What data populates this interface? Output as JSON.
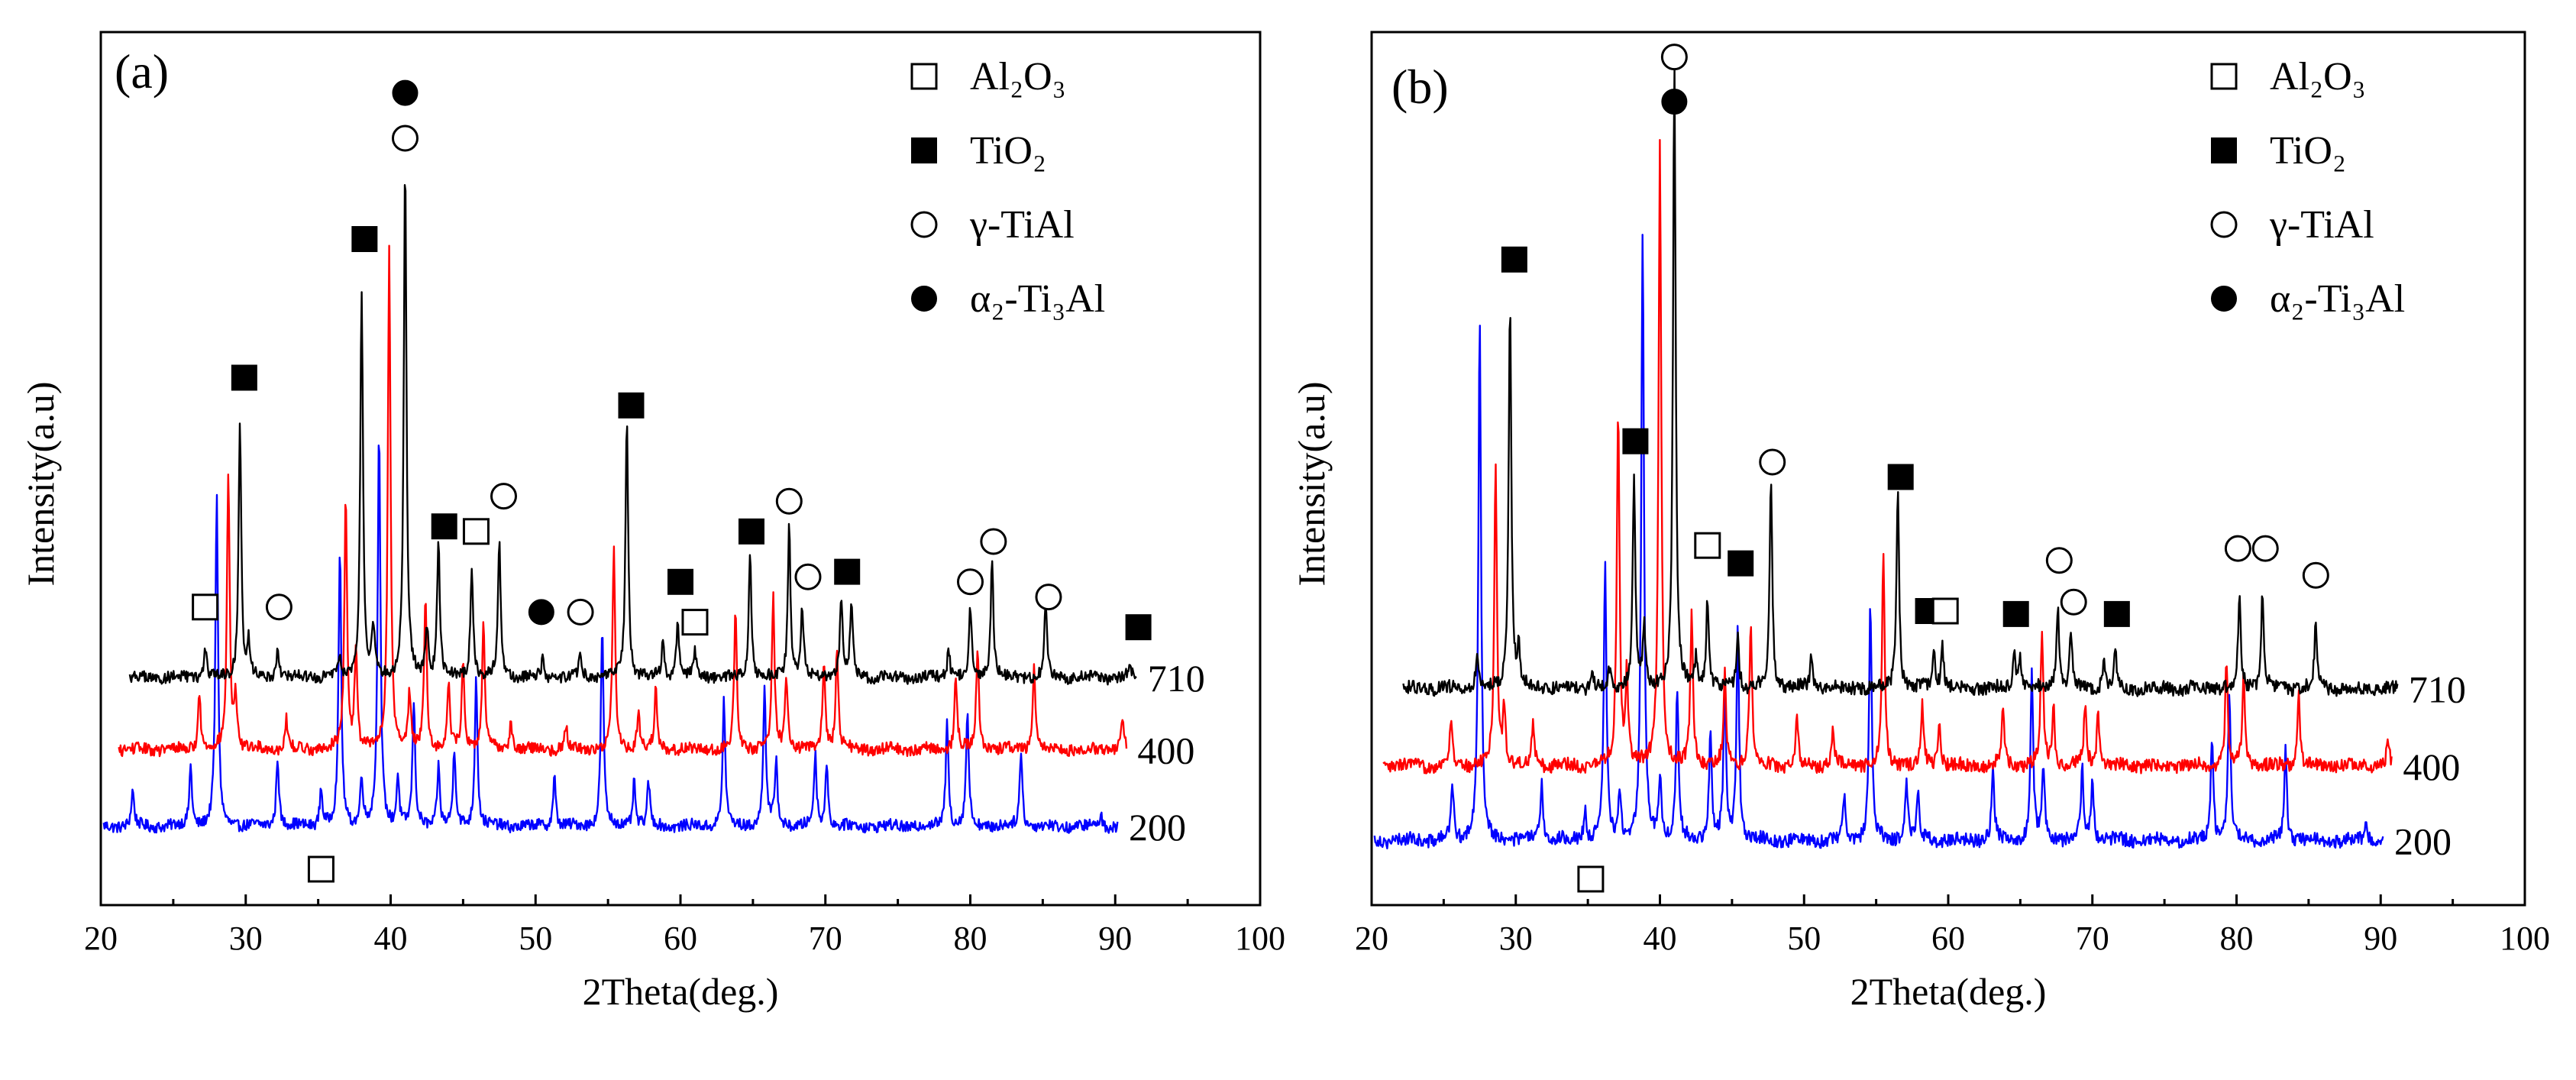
{
  "chart_data": [
    {
      "type": "line",
      "panel": "(a)",
      "xlabel": "2Theta(deg.)",
      "ylabel": "Intensity(a.u)",
      "xlim": [
        20,
        100
      ],
      "xticks": [
        20,
        30,
        40,
        50,
        60,
        70,
        80,
        90,
        100
      ],
      "legend_position": "top-right",
      "legend": [
        {
          "marker": "open-square",
          "label": "Al₂O₃"
        },
        {
          "marker": "filled-square",
          "label": "TiO₂"
        },
        {
          "marker": "open-circle",
          "label": "γ-TiAl"
        },
        {
          "marker": "filled-circle",
          "label": "α₂-Ti₃Al"
        }
      ],
      "series": [
        {
          "name": "710",
          "color": "#000000",
          "x_range": [
            22,
            91.5
          ],
          "baseline": 0.66,
          "peaks": [
            [
              27.2,
              0.12
            ],
            [
              29.6,
              1.0
            ],
            [
              30.2,
              0.14
            ],
            [
              32.2,
              0.12
            ],
            [
              36.5,
              0.08
            ],
            [
              38.0,
              1.55
            ],
            [
              38.8,
              0.2
            ],
            [
              41.0,
              2.05
            ],
            [
              42.5,
              0.2
            ],
            [
              43.3,
              0.55
            ],
            [
              45.6,
              0.45
            ],
            [
              47.5,
              0.55
            ],
            [
              50.5,
              0.08
            ],
            [
              53.1,
              0.1
            ],
            [
              56.3,
              1.05
            ],
            [
              58.8,
              0.15
            ],
            [
              59.8,
              0.22
            ],
            [
              61.0,
              0.1
            ],
            [
              64.8,
              0.5
            ],
            [
              67.5,
              0.6
            ],
            [
              68.4,
              0.28
            ],
            [
              71.1,
              0.32
            ],
            [
              71.8,
              0.3
            ],
            [
              78.5,
              0.12
            ],
            [
              80.0,
              0.28
            ],
            [
              81.5,
              0.48
            ],
            [
              85.2,
              0.28
            ],
            [
              91.0,
              0.05
            ]
          ]
        },
        {
          "name": "400",
          "color": "#ff0000",
          "x_range": [
            21.2,
            90.8
          ],
          "baseline": 0.375,
          "peaks": [
            [
              26.8,
              0.22
            ],
            [
              28.8,
              1.1
            ],
            [
              29.3,
              0.2
            ],
            [
              32.8,
              0.12
            ],
            [
              36.9,
              1.0
            ],
            [
              37.6,
              0.4
            ],
            [
              39.9,
              2.0
            ],
            [
              41.3,
              0.22
            ],
            [
              42.4,
              0.6
            ],
            [
              44.0,
              0.25
            ],
            [
              45.0,
              0.35
            ],
            [
              46.4,
              0.5
            ],
            [
              48.3,
              0.12
            ],
            [
              52.1,
              0.1
            ],
            [
              55.4,
              0.8
            ],
            [
              57.1,
              0.15
            ],
            [
              58.3,
              0.24
            ],
            [
              63.8,
              0.55
            ],
            [
              66.4,
              0.6
            ],
            [
              67.3,
              0.3
            ],
            [
              69.9,
              0.35
            ],
            [
              70.8,
              0.4
            ],
            [
              79.0,
              0.3
            ],
            [
              80.5,
              0.4
            ],
            [
              84.4,
              0.35
            ],
            [
              90.5,
              0.12
            ]
          ]
        },
        {
          "name": "200",
          "color": "#0000ff",
          "x_range": [
            20.2,
            90.2
          ],
          "baseline": 0.07,
          "peaks": [
            [
              22.2,
              0.14
            ],
            [
              26.2,
              0.24
            ],
            [
              28.0,
              1.3
            ],
            [
              32.2,
              0.28
            ],
            [
              35.2,
              0.15
            ],
            [
              36.5,
              1.1
            ],
            [
              38.0,
              0.2
            ],
            [
              39.2,
              1.6
            ],
            [
              40.5,
              0.2
            ],
            [
              41.6,
              0.48
            ],
            [
              43.3,
              0.24
            ],
            [
              44.4,
              0.3
            ],
            [
              45.9,
              0.6
            ],
            [
              51.3,
              0.2
            ],
            [
              54.6,
              0.8
            ],
            [
              56.8,
              0.18
            ],
            [
              57.8,
              0.17
            ],
            [
              63.0,
              0.5
            ],
            [
              65.8,
              0.56
            ],
            [
              66.6,
              0.26
            ],
            [
              69.3,
              0.28
            ],
            [
              70.1,
              0.25
            ],
            [
              78.4,
              0.42
            ],
            [
              79.8,
              0.45
            ],
            [
              83.5,
              0.3
            ],
            [
              89.0,
              0.05
            ]
          ]
        }
      ],
      "annotations": [
        {
          "marker": "open-square",
          "x": 27.2,
          "y": 0.94
        },
        {
          "marker": "filled-square",
          "x": 29.9,
          "y": 1.85
        },
        {
          "marker": "open-circle",
          "x": 32.3,
          "y": 0.94
        },
        {
          "marker": "open-square",
          "x": 35.2,
          "y": -0.1
        },
        {
          "marker": "filled-square",
          "x": 38.2,
          "y": 2.4
        },
        {
          "marker": "open-circle",
          "x": 41.0,
          "y": 2.8
        },
        {
          "marker": "filled-circle",
          "x": 41.0,
          "y": 2.98
        },
        {
          "marker": "filled-square",
          "x": 43.7,
          "y": 1.26
        },
        {
          "marker": "open-square",
          "x": 45.9,
          "y": 1.24
        },
        {
          "marker": "open-circle",
          "x": 47.8,
          "y": 1.38
        },
        {
          "marker": "filled-circle",
          "x": 50.4,
          "y": 0.92
        },
        {
          "marker": "open-circle",
          "x": 53.1,
          "y": 0.92
        },
        {
          "marker": "filled-square",
          "x": 56.6,
          "y": 1.74
        },
        {
          "marker": "filled-square",
          "x": 60.0,
          "y": 1.04
        },
        {
          "marker": "open-square",
          "x": 61.0,
          "y": 0.88
        },
        {
          "marker": "filled-square",
          "x": 64.9,
          "y": 1.24
        },
        {
          "marker": "open-circle",
          "x": 67.5,
          "y": 1.36
        },
        {
          "marker": "open-circle",
          "x": 68.8,
          "y": 1.06
        },
        {
          "marker": "filled-square",
          "x": 71.5,
          "y": 1.08
        },
        {
          "marker": "open-circle",
          "x": 80.0,
          "y": 1.04
        },
        {
          "marker": "open-circle",
          "x": 81.6,
          "y": 1.2
        },
        {
          "marker": "open-circle",
          "x": 85.4,
          "y": 0.98
        },
        {
          "marker": "filled-square",
          "x": 91.6,
          "y": 0.86
        }
      ]
    },
    {
      "type": "line",
      "panel": "(b)",
      "xlabel": "2Theta(deg.)",
      "ylabel": "Intensity(a.u)",
      "xlim": [
        20,
        100
      ],
      "xticks": [
        20,
        30,
        40,
        50,
        60,
        70,
        80,
        90,
        100
      ],
      "legend_position": "top-right",
      "legend": [
        {
          "marker": "open-square",
          "label": "Al₂O₃"
        },
        {
          "marker": "filled-square",
          "label": "TiO₂"
        },
        {
          "marker": "open-circle",
          "label": "γ-TiAl"
        },
        {
          "marker": "filled-circle",
          "label": "α₂-Ti₃Al"
        }
      ],
      "series": [
        {
          "name": "710",
          "color": "#000000",
          "x_range": [
            22.2,
            91.2
          ],
          "baseline": 0.54,
          "peaks": [
            [
              27.3,
              0.1
            ],
            [
              29.6,
              1.3
            ],
            [
              30.2,
              0.12
            ],
            [
              35.3,
              0.06
            ],
            [
              36.5,
              0.06
            ],
            [
              38.2,
              0.7
            ],
            [
              38.9,
              0.2
            ],
            [
              41.0,
              2.1
            ],
            [
              42.5,
              0.1
            ],
            [
              43.3,
              0.3
            ],
            [
              45.4,
              0.18
            ],
            [
              47.7,
              0.7
            ],
            [
              50.5,
              0.1
            ],
            [
              56.5,
              0.67
            ],
            [
              59.0,
              0.12
            ],
            [
              59.6,
              0.14
            ],
            [
              64.6,
              0.12
            ],
            [
              65.0,
              0.1
            ],
            [
              67.6,
              0.28
            ],
            [
              68.5,
              0.2
            ],
            [
              70.8,
              0.1
            ],
            [
              71.6,
              0.12
            ],
            [
              80.2,
              0.3
            ],
            [
              81.8,
              0.33
            ],
            [
              85.5,
              0.22
            ]
          ]
        },
        {
          "name": "400",
          "color": "#ff0000",
          "x_range": [
            20.8,
            90.8
          ],
          "baseline": 0.28,
          "peaks": [
            [
              25.5,
              0.15
            ],
            [
              28.6,
              1.0
            ],
            [
              29.2,
              0.2
            ],
            [
              31.2,
              0.14
            ],
            [
              37.1,
              1.2
            ],
            [
              37.7,
              0.3
            ],
            [
              40.0,
              2.1
            ],
            [
              42.2,
              0.5
            ],
            [
              44.5,
              0.3
            ],
            [
              46.3,
              0.5
            ],
            [
              49.5,
              0.15
            ],
            [
              52.0,
              0.12
            ],
            [
              55.5,
              0.7
            ],
            [
              58.2,
              0.2
            ],
            [
              59.4,
              0.15
            ],
            [
              63.8,
              0.2
            ],
            [
              66.5,
              0.45
            ],
            [
              67.3,
              0.2
            ],
            [
              69.5,
              0.2
            ],
            [
              70.4,
              0.18
            ],
            [
              79.3,
              0.35
            ],
            [
              80.5,
              0.3
            ],
            [
              84.3,
              0.25
            ],
            [
              90.5,
              0.08
            ]
          ]
        },
        {
          "name": "200",
          "color": "#0000ff",
          "x_range": [
            20.2,
            90.2
          ],
          "baseline": 0.03,
          "peaks": [
            [
              25.6,
              0.18
            ],
            [
              27.5,
              1.75
            ],
            [
              31.8,
              0.2
            ],
            [
              34.8,
              0.1
            ],
            [
              36.2,
              0.92
            ],
            [
              37.2,
              0.16
            ],
            [
              38.8,
              2.05
            ],
            [
              40.0,
              0.22
            ],
            [
              41.2,
              0.5
            ],
            [
              43.5,
              0.35
            ],
            [
              44.5,
              0.5
            ],
            [
              45.4,
              0.7
            ],
            [
              52.8,
              0.15
            ],
            [
              54.6,
              0.8
            ],
            [
              57.1,
              0.2
            ],
            [
              57.9,
              0.17
            ],
            [
              63.1,
              0.24
            ],
            [
              65.8,
              0.55
            ],
            [
              66.6,
              0.23
            ],
            [
              69.3,
              0.23
            ],
            [
              70.0,
              0.2
            ],
            [
              78.3,
              0.35
            ],
            [
              79.5,
              0.5
            ],
            [
              83.4,
              0.3
            ],
            [
              89.0,
              0.06
            ]
          ]
        }
      ],
      "annotations": [
        {
          "marker": "filled-square",
          "x": 29.9,
          "y": 1.98
        },
        {
          "marker": "open-square",
          "x": 35.2,
          "y": -0.1
        },
        {
          "marker": "filled-square",
          "x": 38.3,
          "y": 1.37
        },
        {
          "marker": "open-circle",
          "x": 41.0,
          "y": 2.66
        },
        {
          "marker": "filled-circle",
          "x": 41.0,
          "y": 2.51
        },
        {
          "marker": "open-square",
          "x": 43.3,
          "y": 1.02
        },
        {
          "marker": "filled-square",
          "x": 45.6,
          "y": 0.96
        },
        {
          "marker": "open-circle",
          "x": 47.8,
          "y": 1.3
        },
        {
          "marker": "filled-square",
          "x": 56.7,
          "y": 1.25
        },
        {
          "marker": "filled-square",
          "x": 58.6,
          "y": 0.8
        },
        {
          "marker": "open-square",
          "x": 59.8,
          "y": 0.8
        },
        {
          "marker": "filled-square",
          "x": 64.7,
          "y": 0.79
        },
        {
          "marker": "open-circle",
          "x": 67.7,
          "y": 0.97
        },
        {
          "marker": "open-circle",
          "x": 68.7,
          "y": 0.83
        },
        {
          "marker": "filled-square",
          "x": 71.7,
          "y": 0.79
        },
        {
          "marker": "open-circle",
          "x": 80.1,
          "y": 1.01
        },
        {
          "marker": "open-circle",
          "x": 82.0,
          "y": 1.01
        },
        {
          "marker": "open-circle",
          "x": 85.5,
          "y": 0.92
        }
      ]
    }
  ]
}
